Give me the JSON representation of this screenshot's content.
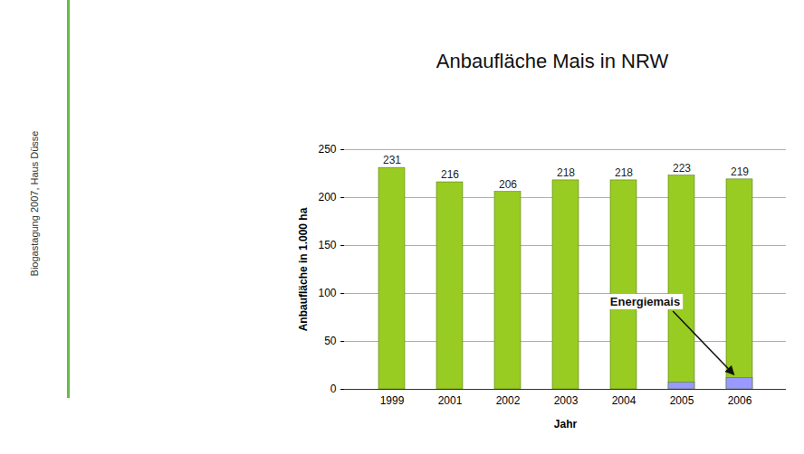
{
  "chart_data": {
    "type": "bar",
    "title": "Anbaufläche Mais in NRW",
    "source": "Biogastagung 2007, Haus Düsse",
    "x_label": "Jahr",
    "y_label": "Anbaufläche in 1.000 ha",
    "categories": [
      "1999",
      "2001",
      "2002",
      "2003",
      "2004",
      "2005",
      "2006"
    ],
    "series": [
      {
        "values": [
          231,
          216,
          206,
          218,
          218,
          223,
          219
        ],
        "color": "#99cc22",
        "data_labels": true
      },
      {
        "name": "Energiemais",
        "values": [
          null,
          null,
          null,
          null,
          null,
          7,
          12
        ],
        "color": "#9999ff"
      }
    ],
    "stacked": false,
    "ylim": [
      0,
      250
    ],
    "yticks": [
      0,
      50,
      100,
      150,
      200,
      250
    ],
    "grid": true
  }
}
